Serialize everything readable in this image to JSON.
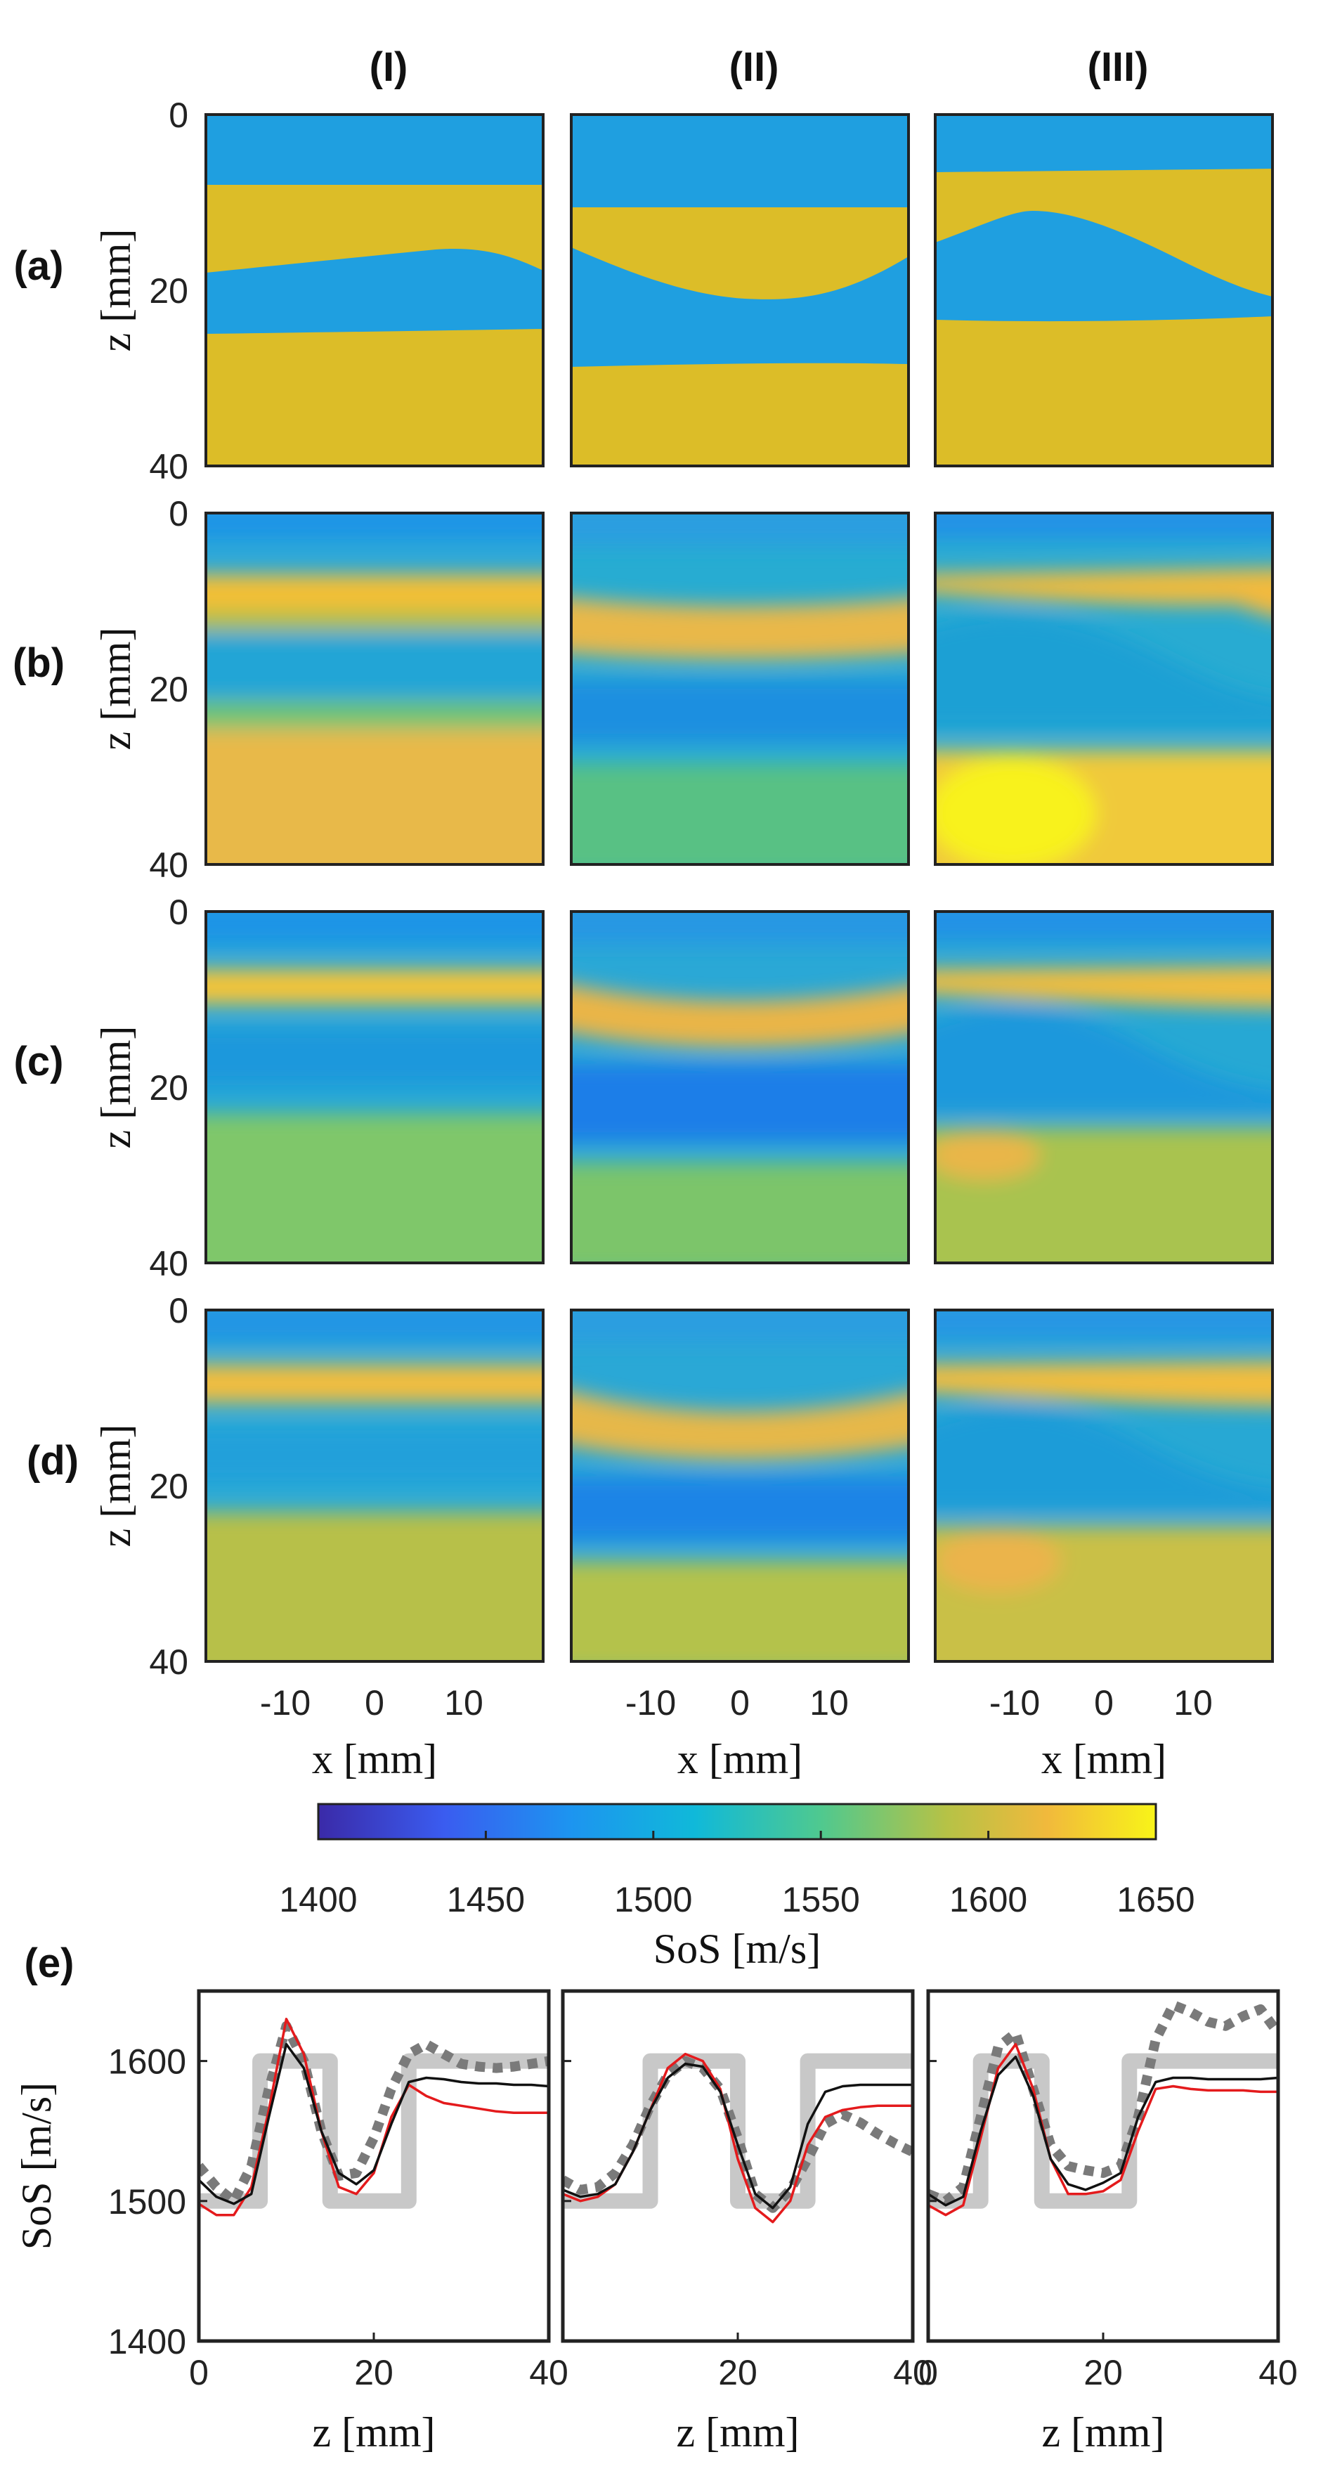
{
  "columns": [
    "(I)",
    "(II)",
    "(III)"
  ],
  "rows": [
    "(a)",
    "(b)",
    "(c)",
    "(d)"
  ],
  "panel_e_label": "(e)",
  "colors": {
    "layer_blue": "#1f9fe0",
    "layer_gold": "#dcbd28",
    "gt_gray": "#c8c8c8",
    "dotted_gray": "#7a7a7a",
    "red_line": "#e41a1c",
    "black_line": "#111111"
  },
  "maps": {
    "z_axis": {
      "label": "z [mm]",
      "ticks": [
        "0",
        "20",
        "40"
      ]
    },
    "x_axis": {
      "label": "x [mm]",
      "ticks": [
        "-10",
        "0",
        "10"
      ]
    }
  },
  "colorbar": {
    "label": "SoS [m/s]",
    "ticks": [
      "1400",
      "1450",
      "1500",
      "1550",
      "1600",
      "1650"
    ],
    "range": [
      1400,
      1650
    ]
  },
  "chart_data": [
    {
      "type": "line",
      "title": "(I)",
      "xlabel": "z [mm]",
      "ylabel": "SoS [m/s]",
      "xlim": [
        0,
        40
      ],
      "ylim": [
        1400,
        1650
      ],
      "xticks": [
        "0",
        "20",
        "40"
      ],
      "yticks": [
        "1400",
        "1500",
        "1600"
      ],
      "series": [
        {
          "name": "ground truth",
          "style": "gray-thick",
          "x": [
            0,
            7,
            7,
            15,
            15,
            24,
            24,
            40
          ],
          "y": [
            1500,
            1500,
            1600,
            1600,
            1500,
            1500,
            1600,
            1600
          ]
        },
        {
          "name": "dotted",
          "style": "gray-dotted",
          "x": [
            0,
            2,
            4,
            6,
            8,
            10,
            12,
            14,
            16,
            18,
            20,
            22,
            24,
            26,
            28,
            30,
            32,
            34,
            36,
            38,
            40
          ],
          "y": [
            1525,
            1510,
            1500,
            1525,
            1580,
            1625,
            1600,
            1550,
            1518,
            1520,
            1545,
            1580,
            1605,
            1612,
            1605,
            1598,
            1596,
            1595,
            1596,
            1598,
            1600
          ]
        },
        {
          "name": "red",
          "style": "red",
          "x": [
            0,
            2,
            4,
            6,
            8,
            10,
            12,
            14,
            16,
            18,
            20,
            22,
            24,
            26,
            28,
            30,
            32,
            34,
            36,
            38,
            40
          ],
          "y": [
            1498,
            1490,
            1490,
            1510,
            1565,
            1630,
            1605,
            1550,
            1510,
            1505,
            1520,
            1560,
            1583,
            1575,
            1570,
            1568,
            1566,
            1564,
            1563,
            1563,
            1563
          ]
        },
        {
          "name": "black",
          "style": "black",
          "x": [
            0,
            2,
            4,
            6,
            8,
            10,
            12,
            14,
            16,
            18,
            20,
            22,
            24,
            26,
            28,
            30,
            32,
            34,
            36,
            38,
            40
          ],
          "y": [
            1515,
            1503,
            1498,
            1505,
            1560,
            1612,
            1595,
            1550,
            1520,
            1512,
            1522,
            1555,
            1585,
            1588,
            1587,
            1585,
            1584,
            1584,
            1583,
            1583,
            1582
          ]
        }
      ]
    },
    {
      "type": "line",
      "title": "(II)",
      "xlabel": "z [mm]",
      "ylabel": "SoS [m/s]",
      "xlim": [
        0,
        40
      ],
      "ylim": [
        1400,
        1650
      ],
      "xticks": [
        "20",
        "40"
      ],
      "yticks": [
        "1400",
        "1500",
        "1600"
      ],
      "series": [
        {
          "name": "ground truth",
          "style": "gray-thick",
          "x": [
            0,
            10,
            10,
            20,
            20,
            28,
            28,
            40
          ],
          "y": [
            1500,
            1500,
            1600,
            1600,
            1500,
            1500,
            1600,
            1600
          ]
        },
        {
          "name": "dotted",
          "style": "gray-dotted",
          "x": [
            0,
            2,
            4,
            6,
            8,
            10,
            12,
            14,
            16,
            18,
            20,
            22,
            24,
            26,
            28,
            30,
            32,
            34,
            36,
            38,
            40
          ],
          "y": [
            1515,
            1508,
            1510,
            1520,
            1540,
            1568,
            1590,
            1600,
            1595,
            1580,
            1545,
            1505,
            1495,
            1508,
            1530,
            1555,
            1562,
            1556,
            1548,
            1541,
            1535
          ]
        },
        {
          "name": "red",
          "style": "red",
          "x": [
            0,
            2,
            4,
            6,
            8,
            10,
            12,
            14,
            16,
            18,
            20,
            22,
            24,
            26,
            28,
            30,
            32,
            34,
            36,
            38,
            40
          ],
          "y": [
            1505,
            1500,
            1503,
            1512,
            1535,
            1565,
            1595,
            1605,
            1600,
            1580,
            1530,
            1495,
            1485,
            1500,
            1540,
            1560,
            1565,
            1567,
            1568,
            1568,
            1568
          ]
        },
        {
          "name": "black",
          "style": "black",
          "x": [
            0,
            2,
            4,
            6,
            8,
            10,
            12,
            14,
            16,
            18,
            20,
            22,
            24,
            26,
            28,
            30,
            32,
            34,
            36,
            38,
            40
          ],
          "y": [
            1508,
            1503,
            1505,
            1512,
            1535,
            1565,
            1588,
            1598,
            1596,
            1578,
            1540,
            1505,
            1495,
            1510,
            1555,
            1578,
            1582,
            1583,
            1583,
            1583,
            1583
          ]
        }
      ]
    },
    {
      "type": "line",
      "title": "(III)",
      "xlabel": "z [mm]",
      "ylabel": "SoS [m/s]",
      "xlim": [
        0,
        40
      ],
      "ylim": [
        1400,
        1650
      ],
      "xticks": [
        "0",
        "20",
        "40"
      ],
      "yticks": [
        "1400",
        "1500",
        "1600"
      ],
      "series": [
        {
          "name": "ground truth",
          "style": "gray-thick",
          "x": [
            0,
            6,
            6,
            13,
            13,
            23,
            23,
            40
          ],
          "y": [
            1500,
            1500,
            1600,
            1600,
            1500,
            1500,
            1600,
            1600
          ]
        },
        {
          "name": "dotted",
          "style": "gray-dotted",
          "x": [
            0,
            2,
            4,
            6,
            8,
            10,
            12,
            14,
            16,
            18,
            20,
            22,
            24,
            26,
            28,
            30,
            32,
            34,
            36,
            38,
            40
          ],
          "y": [
            1505,
            1500,
            1510,
            1560,
            1610,
            1620,
            1580,
            1540,
            1525,
            1522,
            1520,
            1525,
            1560,
            1615,
            1640,
            1635,
            1628,
            1625,
            1632,
            1637,
            1620
          ]
        },
        {
          "name": "red",
          "style": "red",
          "x": [
            0,
            2,
            4,
            6,
            8,
            10,
            12,
            14,
            16,
            18,
            20,
            22,
            24,
            26,
            28,
            30,
            32,
            34,
            36,
            38,
            40
          ],
          "y": [
            1497,
            1490,
            1497,
            1545,
            1595,
            1612,
            1580,
            1530,
            1505,
            1505,
            1507,
            1515,
            1550,
            1580,
            1582,
            1580,
            1579,
            1579,
            1579,
            1578,
            1578
          ]
        },
        {
          "name": "black",
          "style": "black",
          "x": [
            0,
            2,
            4,
            6,
            8,
            10,
            12,
            14,
            16,
            18,
            20,
            22,
            24,
            26,
            28,
            30,
            32,
            34,
            36,
            38,
            40
          ],
          "y": [
            1505,
            1497,
            1503,
            1550,
            1590,
            1603,
            1575,
            1530,
            1512,
            1508,
            1513,
            1520,
            1560,
            1585,
            1588,
            1588,
            1587,
            1587,
            1587,
            1587,
            1588
          ]
        }
      ]
    }
  ]
}
